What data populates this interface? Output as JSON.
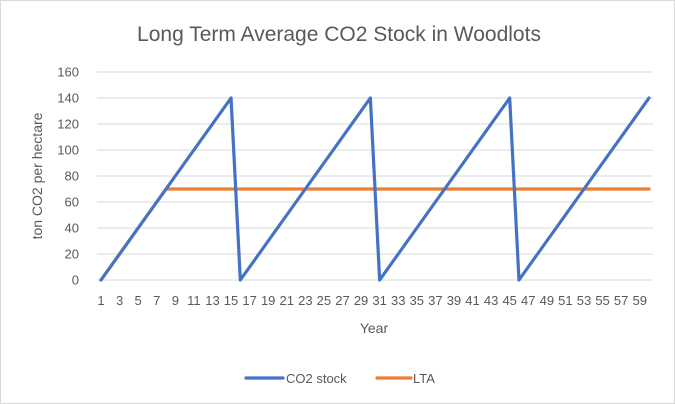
{
  "chart_data": {
    "type": "line",
    "title": "Long Term Average CO2 Stock in Woodlots",
    "xlabel": "Year",
    "ylabel": "ton CO2 per hectare",
    "x": [
      1,
      2,
      3,
      4,
      5,
      6,
      7,
      8,
      9,
      10,
      11,
      12,
      13,
      14,
      15,
      16,
      17,
      18,
      19,
      20,
      21,
      22,
      23,
      24,
      25,
      26,
      27,
      28,
      29,
      30,
      31,
      32,
      33,
      34,
      35,
      36,
      37,
      38,
      39,
      40,
      41,
      42,
      43,
      44,
      45,
      46,
      47,
      48,
      49,
      50,
      51,
      52,
      53,
      54,
      55,
      56,
      57,
      58,
      59,
      60
    ],
    "xtick_labels": [
      "1",
      "3",
      "5",
      "7",
      "9",
      "11",
      "13",
      "15",
      "17",
      "19",
      "21",
      "23",
      "25",
      "27",
      "29",
      "31",
      "33",
      "35",
      "37",
      "39",
      "41",
      "43",
      "45",
      "47",
      "49",
      "51",
      "53",
      "55",
      "57",
      "59"
    ],
    "ylim": [
      0,
      160
    ],
    "yticks": [
      0,
      20,
      40,
      60,
      80,
      100,
      120,
      140,
      160
    ],
    "grid": true,
    "legend_position": "bottom",
    "series": [
      {
        "name": "CO2 stock",
        "color": "#4472C4",
        "values": [
          0,
          10,
          20,
          30,
          40,
          50,
          60,
          70,
          80,
          90,
          100,
          110,
          120,
          130,
          140,
          0,
          10,
          20,
          30,
          40,
          50,
          60,
          70,
          80,
          90,
          100,
          110,
          120,
          130,
          140,
          0,
          10,
          20,
          30,
          40,
          50,
          60,
          70,
          80,
          90,
          100,
          110,
          120,
          130,
          140,
          0,
          10,
          20,
          30,
          40,
          50,
          60,
          70,
          80,
          90,
          100,
          110,
          120,
          130,
          140
        ]
      },
      {
        "name": "LTA",
        "color": "#ED7D31",
        "values": [
          0,
          10,
          20,
          30,
          40,
          50,
          60,
          70,
          70,
          70,
          70,
          70,
          70,
          70,
          70,
          70,
          70,
          70,
          70,
          70,
          70,
          70,
          70,
          70,
          70,
          70,
          70,
          70,
          70,
          70,
          70,
          70,
          70,
          70,
          70,
          70,
          70,
          70,
          70,
          70,
          70,
          70,
          70,
          70,
          70,
          70,
          70,
          70,
          70,
          70,
          70,
          70,
          70,
          70,
          70,
          70,
          70,
          70,
          70,
          70
        ]
      }
    ]
  }
}
